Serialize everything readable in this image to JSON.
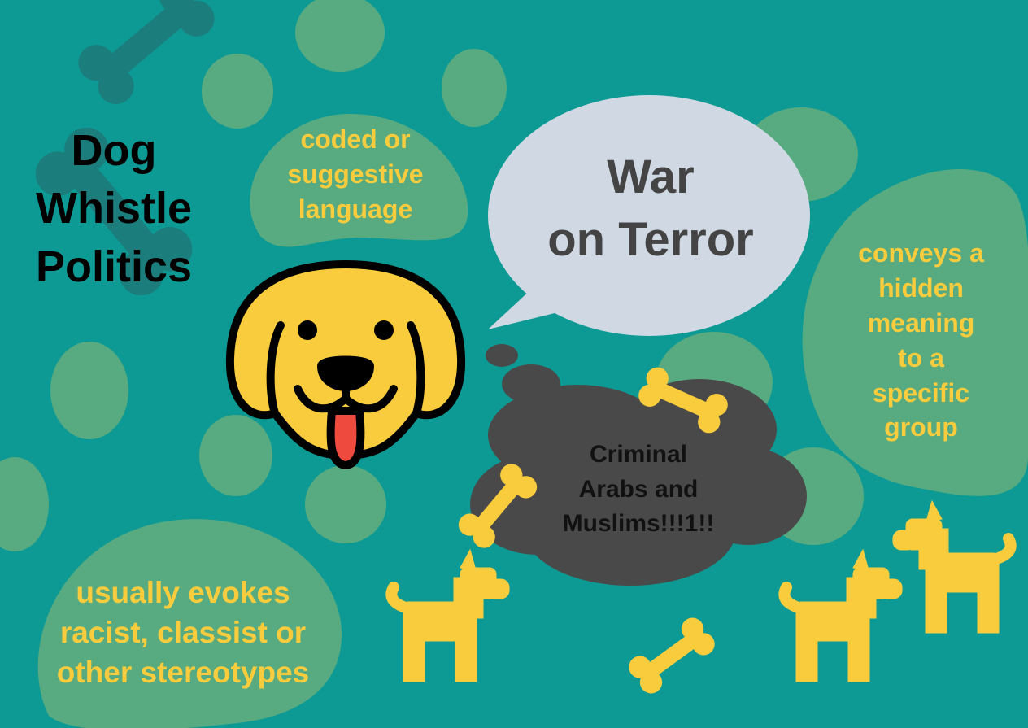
{
  "title": "Dog\nWhistle\nPolitics",
  "blobs": {
    "coded": "coded or\nsuggestive\nlanguage",
    "conveys": "conveys a\nhidden\nmeaning\nto a\nspecific\ngroup",
    "usually": "usually evokes\nracist, classist or\nother stereotypes"
  },
  "speech_bubble": "War\non Terror",
  "thought_bubble": "Criminal\nArabs and\nMuslims!!!1!!",
  "colors": {
    "background": "#0e9a94",
    "blob_green": "#58ab80",
    "accent_yellow": "#f9cc3d",
    "speech_bubble": "#cfd8e3",
    "thought_bubble": "#494949",
    "tongue": "#ee4a3e"
  },
  "icons": [
    "dog-face-icon",
    "bone-icon",
    "dog-silhouette-icon",
    "paw-print-icon"
  ]
}
